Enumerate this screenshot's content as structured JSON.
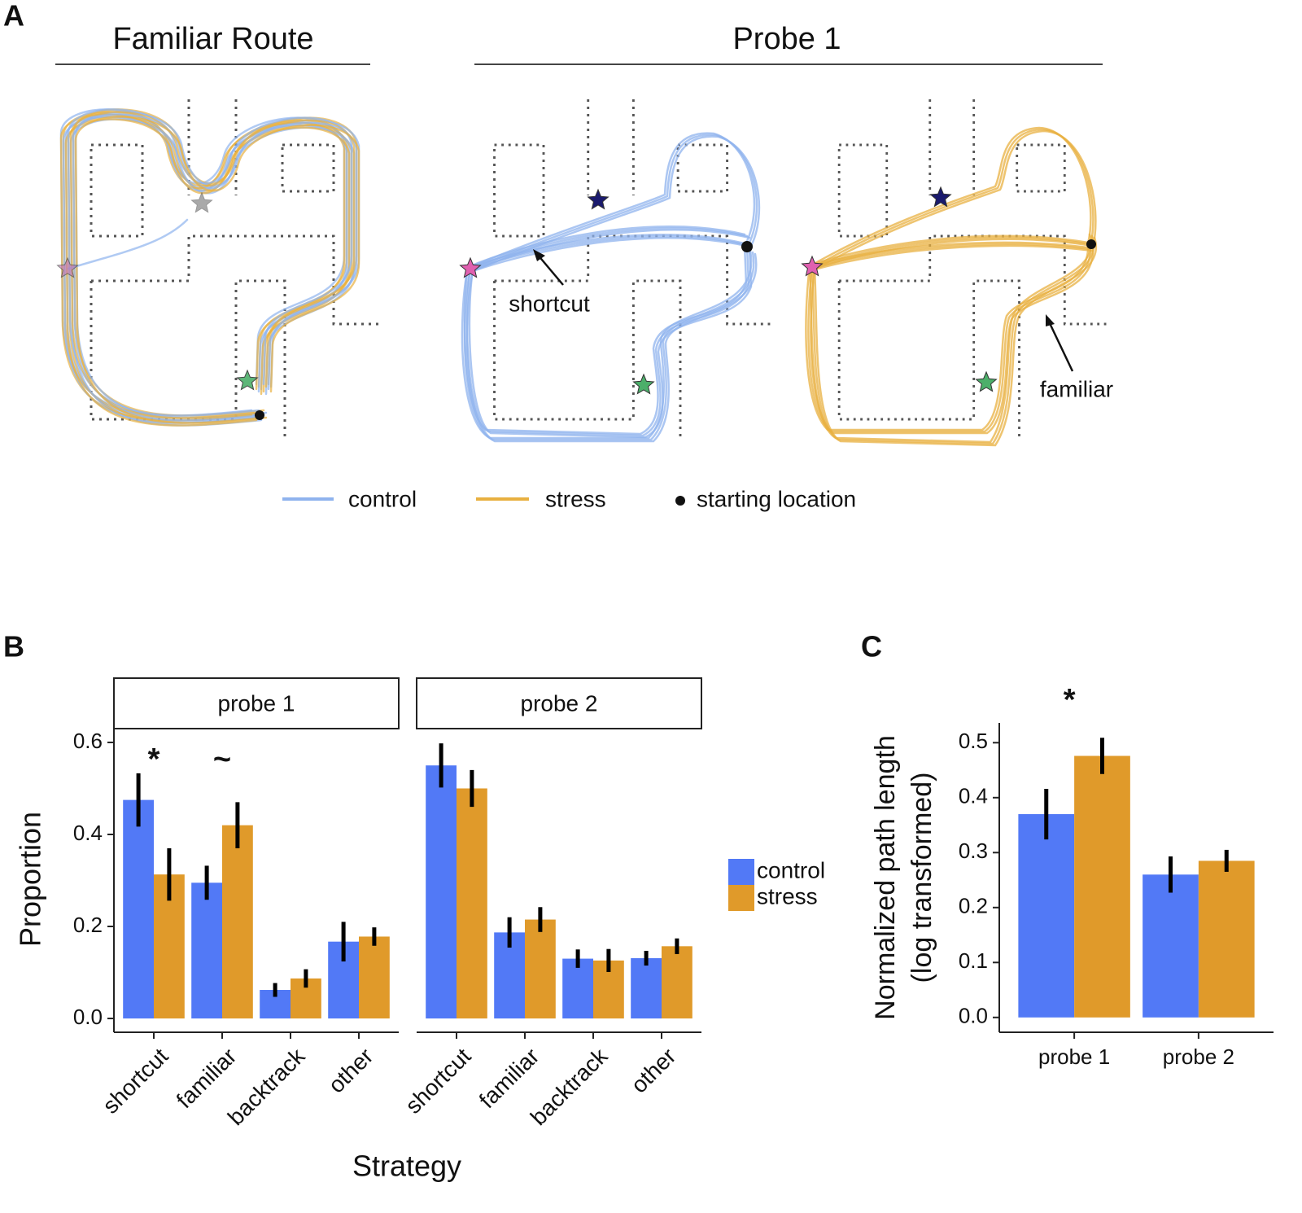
{
  "panel_labels": [
    "A",
    "B",
    "C"
  ],
  "panel_a": {
    "titles": [
      "Familiar Route",
      "Probe 1"
    ],
    "annotations": [
      "shortcut",
      "familiar"
    ],
    "legend": [
      "control",
      "stress",
      "starting location"
    ]
  },
  "chart_data": [
    {
      "type": "bar",
      "title": "probe 1",
      "y_label": "Proportion",
      "x_label": "Strategy",
      "categories": [
        "shortcut",
        "familiar",
        "backtrack",
        "other"
      ],
      "series": [
        {
          "name": "control",
          "color": "#5279f6",
          "values": [
            0.475,
            0.295,
            0.062,
            0.167
          ],
          "errors": [
            0.058,
            0.037,
            0.015,
            0.043
          ]
        },
        {
          "name": "stress",
          "color": "#e09a2a",
          "values": [
            0.313,
            0.42,
            0.087,
            0.178
          ],
          "errors": [
            0.057,
            0.05,
            0.02,
            0.02
          ]
        }
      ],
      "annotations": [
        "*",
        "~"
      ],
      "ylim": [
        -0.03,
        0.63
      ],
      "yticks": [
        {
          "value": 0,
          "label": "0.0"
        },
        0.2,
        0.4,
        0.6
      ]
    },
    {
      "type": "bar",
      "title": "probe 2",
      "categories": [
        "shortcut",
        "familiar",
        "backtrack",
        "other"
      ],
      "series": [
        {
          "color": "#5279f6",
          "values": [
            0.55,
            0.187,
            0.13,
            0.131
          ],
          "errors": [
            0.048,
            0.033,
            0.02,
            0.016
          ]
        },
        {
          "color": "#e09a2a",
          "values": [
            0.5,
            0.215,
            0.126,
            0.157
          ],
          "errors": [
            0.04,
            0.027,
            0.025,
            0.017
          ]
        }
      ],
      "ylim": [
        -0.03,
        0.63
      ]
    },
    {
      "type": "bar",
      "y_label": [
        "Normalized path length",
        "(log transformed)"
      ],
      "categories": [
        "probe 1",
        "probe 2"
      ],
      "series": [
        {
          "color": "#5279f6",
          "values": [
            0.37,
            0.26
          ],
          "errors": [
            0.046,
            0.033
          ]
        },
        {
          "color": "#e09a2a",
          "values": [
            0.476,
            0.285
          ],
          "errors": [
            0.033,
            0.02
          ]
        }
      ],
      "annotations": [
        "*"
      ],
      "ylim": [
        -0.027,
        0.536
      ],
      "yticks": [
        {
          "value": 0,
          "label": "0.0"
        },
        0.1,
        0.2,
        0.3,
        0.4,
        0.5
      ]
    }
  ]
}
